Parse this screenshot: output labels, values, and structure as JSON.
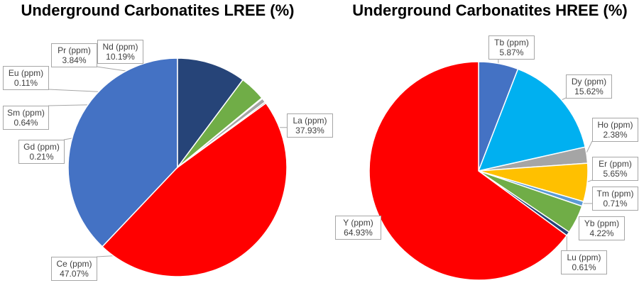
{
  "chart_data": [
    {
      "type": "pie",
      "title": "Underground Carbonatites LREE (%)",
      "slices": [
        {
          "name": "La (ppm)",
          "pct_label": "37.93%",
          "value": 37.93,
          "color": "#4472C4"
        },
        {
          "name": "Ce (ppm)",
          "pct_label": "47.07%",
          "value": 47.07,
          "color": "#FF0000"
        },
        {
          "name": "Gd (ppm)",
          "pct_label": "0.21%",
          "value": 0.21,
          "color": "#8C8C8C"
        },
        {
          "name": "Sm (ppm)",
          "pct_label": "0.64%",
          "value": 0.64,
          "color": "#A5A5A5"
        },
        {
          "name": "Eu (ppm)",
          "pct_label": "0.11%",
          "value": 0.11,
          "color": "#FFC000"
        },
        {
          "name": "Pr (ppm)",
          "pct_label": "3.84%",
          "value": 3.84,
          "color": "#70AD47"
        },
        {
          "name": "Nd (ppm)",
          "pct_label": "10.19%",
          "value": 10.19,
          "color": "#264478"
        }
      ]
    },
    {
      "type": "pie",
      "title": "Underground Carbonatites HREE (%)",
      "slices": [
        {
          "name": "Tb (ppm)",
          "pct_label": "5.87%",
          "value": 5.87,
          "color": "#4472C4"
        },
        {
          "name": "Dy (ppm)",
          "pct_label": "15.62%",
          "value": 15.62,
          "color": "#00B0F0"
        },
        {
          "name": "Ho (ppm)",
          "pct_label": "2.38%",
          "value": 2.38,
          "color": "#A5A5A5"
        },
        {
          "name": "Er (ppm)",
          "pct_label": "5.65%",
          "value": 5.65,
          "color": "#FFC000"
        },
        {
          "name": "Tm (ppm)",
          "pct_label": "0.71%",
          "value": 0.71,
          "color": "#5B9BD5"
        },
        {
          "name": "Yb (ppm)",
          "pct_label": "4.22%",
          "value": 4.22,
          "color": "#70AD47"
        },
        {
          "name": "Lu (ppm)",
          "pct_label": "0.61%",
          "value": 0.61,
          "color": "#264478"
        },
        {
          "name": "Y (ppm)",
          "pct_label": "64.93%",
          "value": 64.93,
          "color": "#FF0000"
        }
      ]
    }
  ]
}
